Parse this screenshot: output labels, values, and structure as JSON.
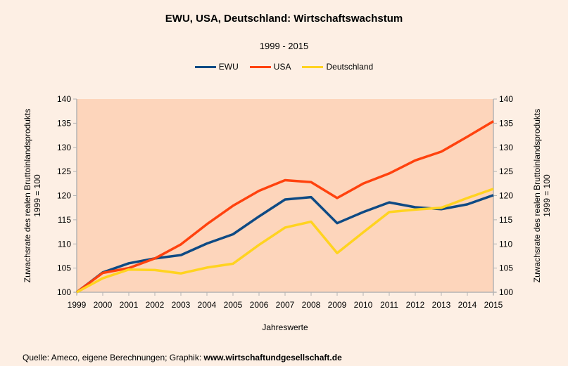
{
  "chart_data": {
    "type": "line",
    "title": "EWU, USA, Deutschland: Wirtschaftswachstum",
    "subtitle": "1999 - 2015",
    "xlabel": "Jahreswerte",
    "ylabel_left": [
      "Zuwachsrate des realen Bruttoinlandsprodukts",
      "1999 = 100"
    ],
    "ylabel_right": [
      "Zuwachsrate des realen Bruttoinlandsprodukts",
      "1999 = 100"
    ],
    "x": [
      "1999",
      "2000",
      "2001",
      "2002",
      "2003",
      "2004",
      "2005",
      "2006",
      "2007",
      "2008",
      "2009",
      "2010",
      "2011",
      "2012",
      "2013",
      "2014",
      "2015"
    ],
    "ylim": [
      100,
      140
    ],
    "yticks": [
      100,
      105,
      110,
      115,
      120,
      125,
      130,
      135,
      140
    ],
    "grid": false,
    "legend_position": "top-center",
    "background_plot": "#fdd5bb",
    "series": [
      {
        "name": "EWU",
        "color": "#0e4a84",
        "values": [
          100,
          104.1,
          106.0,
          107.0,
          107.7,
          110.1,
          112.0,
          115.7,
          119.2,
          119.7,
          114.3,
          116.6,
          118.6,
          117.6,
          117.2,
          118.2,
          120.1
        ]
      },
      {
        "name": "USA",
        "color": "#ff420e",
        "values": [
          100,
          104.0,
          105.0,
          107.0,
          109.9,
          114.1,
          117.9,
          121.0,
          123.2,
          122.8,
          119.5,
          122.5,
          124.6,
          127.3,
          129.1,
          132.2,
          135.4
        ]
      },
      {
        "name": "Deutschland",
        "color": "#ffd320",
        "values": [
          100,
          102.9,
          104.7,
          104.6,
          103.9,
          105.1,
          105.9,
          109.8,
          113.4,
          114.6,
          108.1,
          112.4,
          116.6,
          117.1,
          117.5,
          119.5,
          121.4
        ]
      }
    ]
  },
  "footer": {
    "source_prefix": "Quelle: Ameco, eigene Berechnungen; Graphik: ",
    "source_link": "www.wirtschaftundgesellschaft.de"
  }
}
